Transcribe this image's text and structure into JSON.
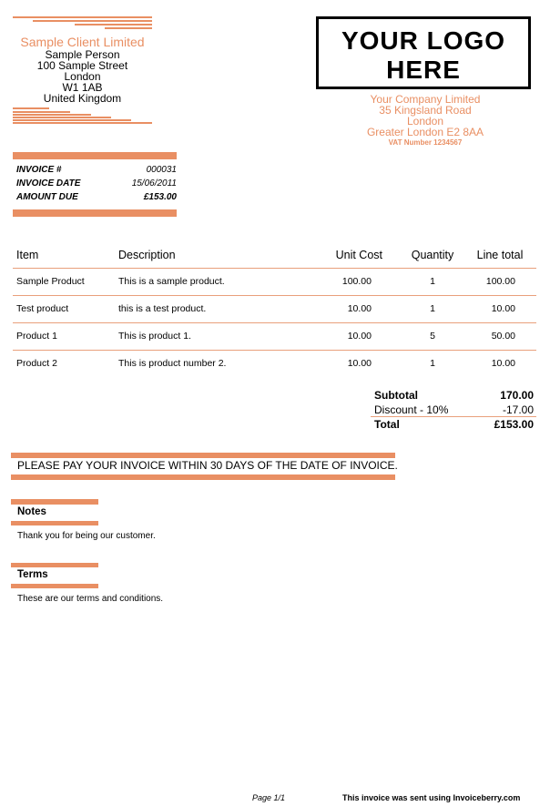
{
  "accent_color": "#e98f63",
  "client": {
    "name": "Sample Client Limited",
    "lines": [
      "Sample Person",
      "100 Sample Street",
      "London",
      "W1 1AB",
      "United Kingdom"
    ]
  },
  "logo": {
    "line1": "YOUR LOGO",
    "line2": "HERE"
  },
  "company": {
    "lines": [
      "Your Company Limited",
      "35 Kingsland Road",
      "London",
      "Greater London E2 8AA"
    ],
    "vat": "VAT Number 1234567"
  },
  "invoice_info": [
    {
      "label": "INVOICE #",
      "value": "000031"
    },
    {
      "label": "INVOICE DATE",
      "value": "15/06/2011"
    },
    {
      "label": "AMOUNT DUE",
      "value": "£153.00"
    }
  ],
  "table": {
    "headers": [
      "Item",
      "Description",
      "Unit Cost",
      "Quantity",
      "Line total"
    ],
    "rows": [
      [
        "Sample Product",
        "This is a sample product.",
        "100.00",
        "1",
        "100.00"
      ],
      [
        "Test product",
        "this is a test product.",
        "10.00",
        "1",
        "10.00"
      ],
      [
        "Product 1",
        "This is product 1.",
        "10.00",
        "5",
        "50.00"
      ],
      [
        "Product 2",
        "This is product number 2.",
        "10.00",
        "1",
        "10.00"
      ]
    ]
  },
  "totals": [
    {
      "label": "Subtotal",
      "value": "170.00"
    },
    {
      "label": "Discount - 10%",
      "value": "-17.00"
    },
    {
      "label": "Total",
      "value": "£153.00"
    }
  ],
  "payment_notice": "PLEASE PAY YOUR INVOICE WITHIN 30 DAYS OF THE DATE OF INVOICE.",
  "notes": {
    "title": "Notes",
    "text": "Thank you for being our customer."
  },
  "terms": {
    "title": "Terms",
    "text": "These are our terms and conditions."
  },
  "footer": {
    "page": "Page 1/1",
    "sent_using": "This invoice was sent using Invoiceberry.com"
  }
}
